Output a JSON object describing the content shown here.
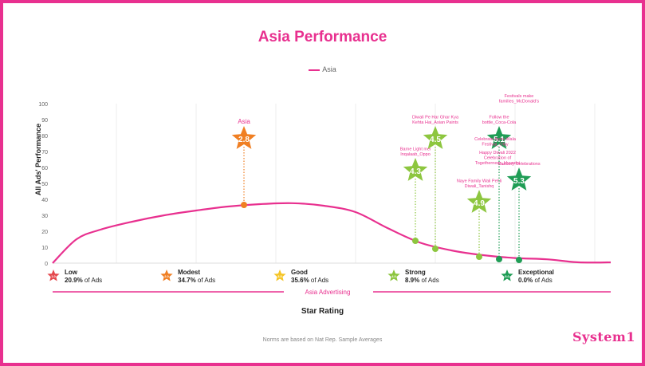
{
  "title": "Asia Performance",
  "legend": {
    "label": "Asia",
    "color": "#e8308f"
  },
  "footnote": "Norms are based on Nat Rep. Sample Averages",
  "brand": "System1",
  "chart_data": {
    "type": "line",
    "series": [
      {
        "name": "Asia",
        "color": "#e8308f",
        "x": [
          0.0,
          0.3,
          0.6,
          1.0,
          1.4,
          1.8,
          2.2,
          2.6,
          3.0,
          3.4,
          3.8,
          4.2,
          4.6,
          5.0,
          5.4,
          5.8,
          6.2,
          6.6,
          7.0
        ],
        "y": [
          0,
          15,
          21,
          26,
          30,
          33,
          35.5,
          37,
          37.6,
          36,
          32,
          22,
          13,
          8,
          5,
          3.2,
          2.4,
          0.5,
          0.5
        ]
      }
    ],
    "xlim": [
      0,
      7
    ],
    "ylim": [
      0,
      100
    ],
    "yticks": [
      "0",
      "10",
      "20",
      "30",
      "40",
      "50",
      "60",
      "70",
      "80",
      "90",
      "100"
    ],
    "ylabel": "All Ads' Performance",
    "xlabel": "Star Rating",
    "band_label": "Asia Advertising",
    "bands": [
      {
        "label": "Low",
        "pct": "20.9%",
        "suffix": "of Ads",
        "star_value": "1.0",
        "color": "#e5484d"
      },
      {
        "label": "Modest",
        "pct": "34.7%",
        "suffix": "of Ads",
        "star_value": "2.0",
        "color": "#f07f23"
      },
      {
        "label": "Good",
        "pct": "35.6%",
        "suffix": "of Ads",
        "star_value": "3.0",
        "color": "#f5c526"
      },
      {
        "label": "Strong",
        "pct": "8.9%",
        "suffix": "of Ads",
        "star_value": "4.0",
        "color": "#8dc63f"
      },
      {
        "label": "Exceptional",
        "pct": "0.0%",
        "suffix": "of Ads",
        "star_value": "5.0",
        "color": "#1f9d55"
      }
    ],
    "markers": [
      {
        "value": "2.8",
        "x": 2.4,
        "curve_y": 36.5,
        "star_y": 78,
        "color": "#f07f23",
        "label": "Asia"
      },
      {
        "value": "4.3",
        "x": 4.55,
        "curve_y": 14,
        "star_y": 58,
        "color": "#8dc63f",
        "label": "Barne Light mei Inqalaab_Oppo"
      },
      {
        "value": "4.5",
        "x": 4.8,
        "curve_y": 9,
        "star_y": 78,
        "color": "#8dc63f",
        "label": "Diwali Pe Har Ghar Kya Kehta Hai_Asian Paints"
      },
      {
        "value": "4.9",
        "x": 5.35,
        "curve_y": 4,
        "star_y": 38,
        "color": "#8dc63f",
        "label": "Naye Family Wali Pehli Diwali_Tanishq"
      },
      {
        "value": "5.1",
        "x": 5.6,
        "curve_y": 2.5,
        "star_y": 78,
        "color": "#1f9d55",
        "label": "Follow the bottle_Coca-Cola"
      },
      {
        "value": "5.3",
        "x": 5.85,
        "curve_y": 2,
        "star_y": 52,
        "color": "#1f9d55",
        "label": "Cadbury Celebrations"
      }
    ],
    "annotations": [
      "Festivals make families_McDonald's",
      "Celebrate Apna Wala Festival_Olay",
      "Happy Diwali 2022 Celebration of Togetherness_Hyundai"
    ]
  }
}
